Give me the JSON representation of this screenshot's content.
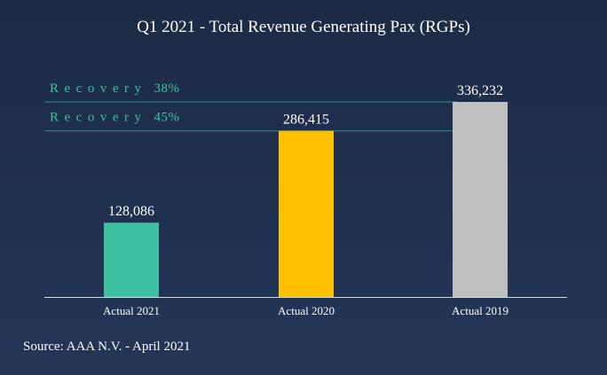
{
  "chart_data": {
    "type": "bar",
    "title": "Q1 2021 - Total Revenue Generating Pax (RGPs)",
    "categories": [
      "Actual 2021",
      "Actual 2020",
      "Actual 2019"
    ],
    "values": [
      128086,
      286415,
      336232
    ],
    "value_labels": [
      "128,086",
      "286,415",
      "336,232"
    ],
    "colors": [
      "#3ec1a0",
      "#ffc000",
      "#bfbfbf"
    ],
    "ylim": [
      0,
      336232
    ],
    "grid": false,
    "legend": "none",
    "annotations": [
      {
        "label": "Recovery",
        "value_text": "38%",
        "ref_value": 336232
      },
      {
        "label": "Recovery",
        "value_text": "45%",
        "ref_value": 286415
      }
    ],
    "reference_line_color": "#2f8a84",
    "xlabel": "",
    "ylabel": ""
  },
  "source": "Source: AAA N.V. - April 2021"
}
